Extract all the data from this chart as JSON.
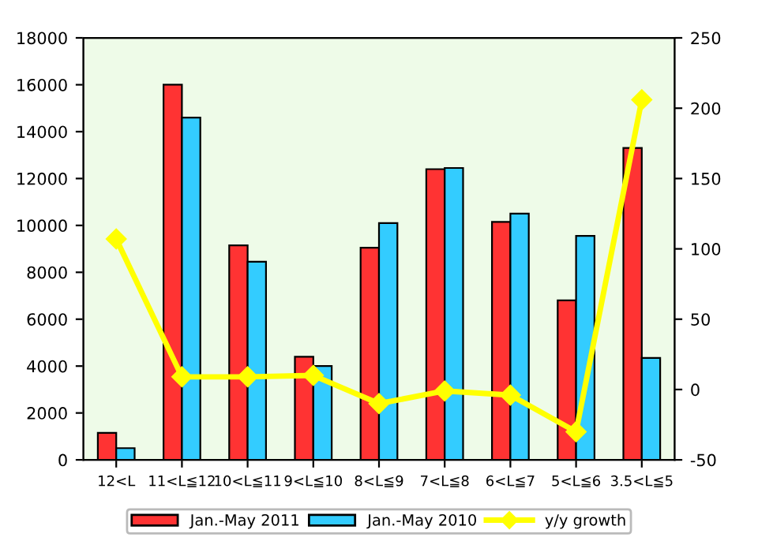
{
  "chart_data": {
    "type": "bar",
    "categories": [
      "12<L",
      "11<L≦12",
      "10<L≦11",
      "9<L≦10",
      "8<L≦9",
      "7<L≦8",
      "6<L≦7",
      "5<L≦6",
      "3.5<L≦5"
    ],
    "series": [
      {
        "name": "Jan.-May 2011",
        "color": "#ff3333",
        "values": [
          1150,
          16000,
          9150,
          4400,
          9050,
          12400,
          10150,
          6800,
          13300
        ]
      },
      {
        "name": "Jan.-May 2010",
        "color": "#33ccff",
        "values": [
          500,
          14600,
          8450,
          4000,
          10100,
          12450,
          10500,
          9550,
          4350
        ]
      },
      {
        "name": "y/y growth",
        "color": "#ffff00",
        "type": "line",
        "axis": "y2",
        "marker": "diamond",
        "values": [
          107,
          9,
          9,
          10,
          -10,
          -1,
          -4,
          -30,
          206
        ]
      }
    ],
    "ylim": [
      0,
      18000
    ],
    "yticks": [
      0,
      2000,
      4000,
      6000,
      8000,
      10000,
      12000,
      14000,
      16000,
      18000
    ],
    "y2lim": [
      -50,
      250
    ],
    "y2ticks": [
      -50,
      0,
      50,
      100,
      150,
      200,
      250
    ],
    "grid": false,
    "legend": "bottom"
  }
}
